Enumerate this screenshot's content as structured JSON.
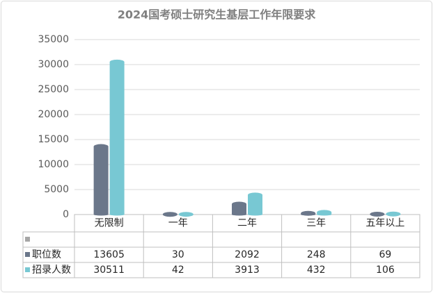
{
  "chart_data": {
    "type": "bar",
    "title": "2024国考硕士研究生基层工作年限要求",
    "categories": [
      "无限制",
      "一年",
      "二年",
      "三年",
      "五年以上"
    ],
    "series": [
      {
        "name": "职位数",
        "color": "#6b778a",
        "values": [
          13605,
          30,
          2092,
          248,
          69
        ]
      },
      {
        "name": "招录人数",
        "color": "#78c8d3",
        "values": [
          30511,
          42,
          3913,
          432,
          106
        ]
      }
    ],
    "ylim": [
      0,
      35000
    ],
    "yticks": [
      0,
      5000,
      10000,
      15000,
      20000,
      25000,
      30000,
      35000
    ],
    "grid": true
  }
}
